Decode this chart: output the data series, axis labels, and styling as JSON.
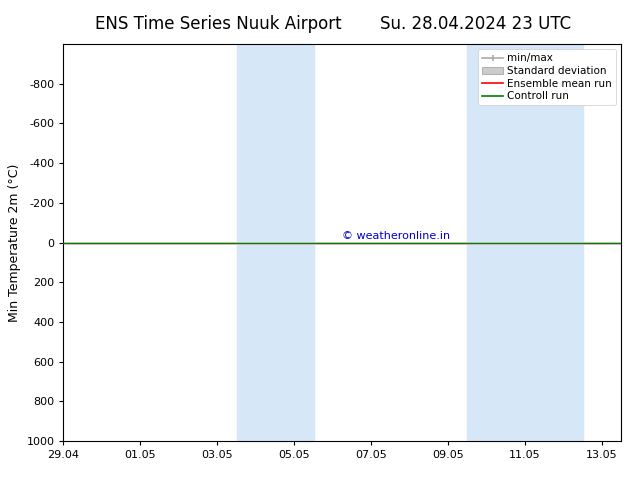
{
  "title_left": "ENS Time Series Nuuk Airport",
  "title_right": "Su. 28.04.2024 23 UTC",
  "ylabel": "Min Temperature 2m (°C)",
  "xlabel_ticks": [
    "29.04",
    "01.05",
    "03.05",
    "05.05",
    "07.05",
    "09.05",
    "11.05",
    "13.05"
  ],
  "xlabel_tick_positions": [
    0,
    2,
    4,
    6,
    8,
    10,
    12,
    14
  ],
  "ylim_bottom": 1000,
  "ylim_top": -1000,
  "yticks": [
    -800,
    -600,
    -400,
    -200,
    0,
    200,
    400,
    600,
    800,
    1000
  ],
  "flat_line_y": 0,
  "ensemble_mean_color": "#ff0000",
  "control_run_color": "#008000",
  "min_max_color": "#aaaaaa",
  "std_dev_color": "#cccccc",
  "background_color": "#ffffff",
  "plot_bg_color": "#ffffff",
  "shaded_regions": [
    {
      "x_start": 4.5,
      "x_end": 6.5
    },
    {
      "x_start": 10.5,
      "x_end": 13.5
    }
  ],
  "shaded_color": "#d6e8f7",
  "copyright_text": "© weatheronline.in",
  "copyright_color": "#0000cc",
  "legend_labels": [
    "min/max",
    "Standard deviation",
    "Ensemble mean run",
    "Controll run"
  ],
  "legend_colors": [
    "#aaaaaa",
    "#cccccc",
    "#ff0000",
    "#008000"
  ],
  "title_fontsize": 12,
  "axis_fontsize": 9,
  "tick_fontsize": 8,
  "font_family": "DejaVu Sans"
}
